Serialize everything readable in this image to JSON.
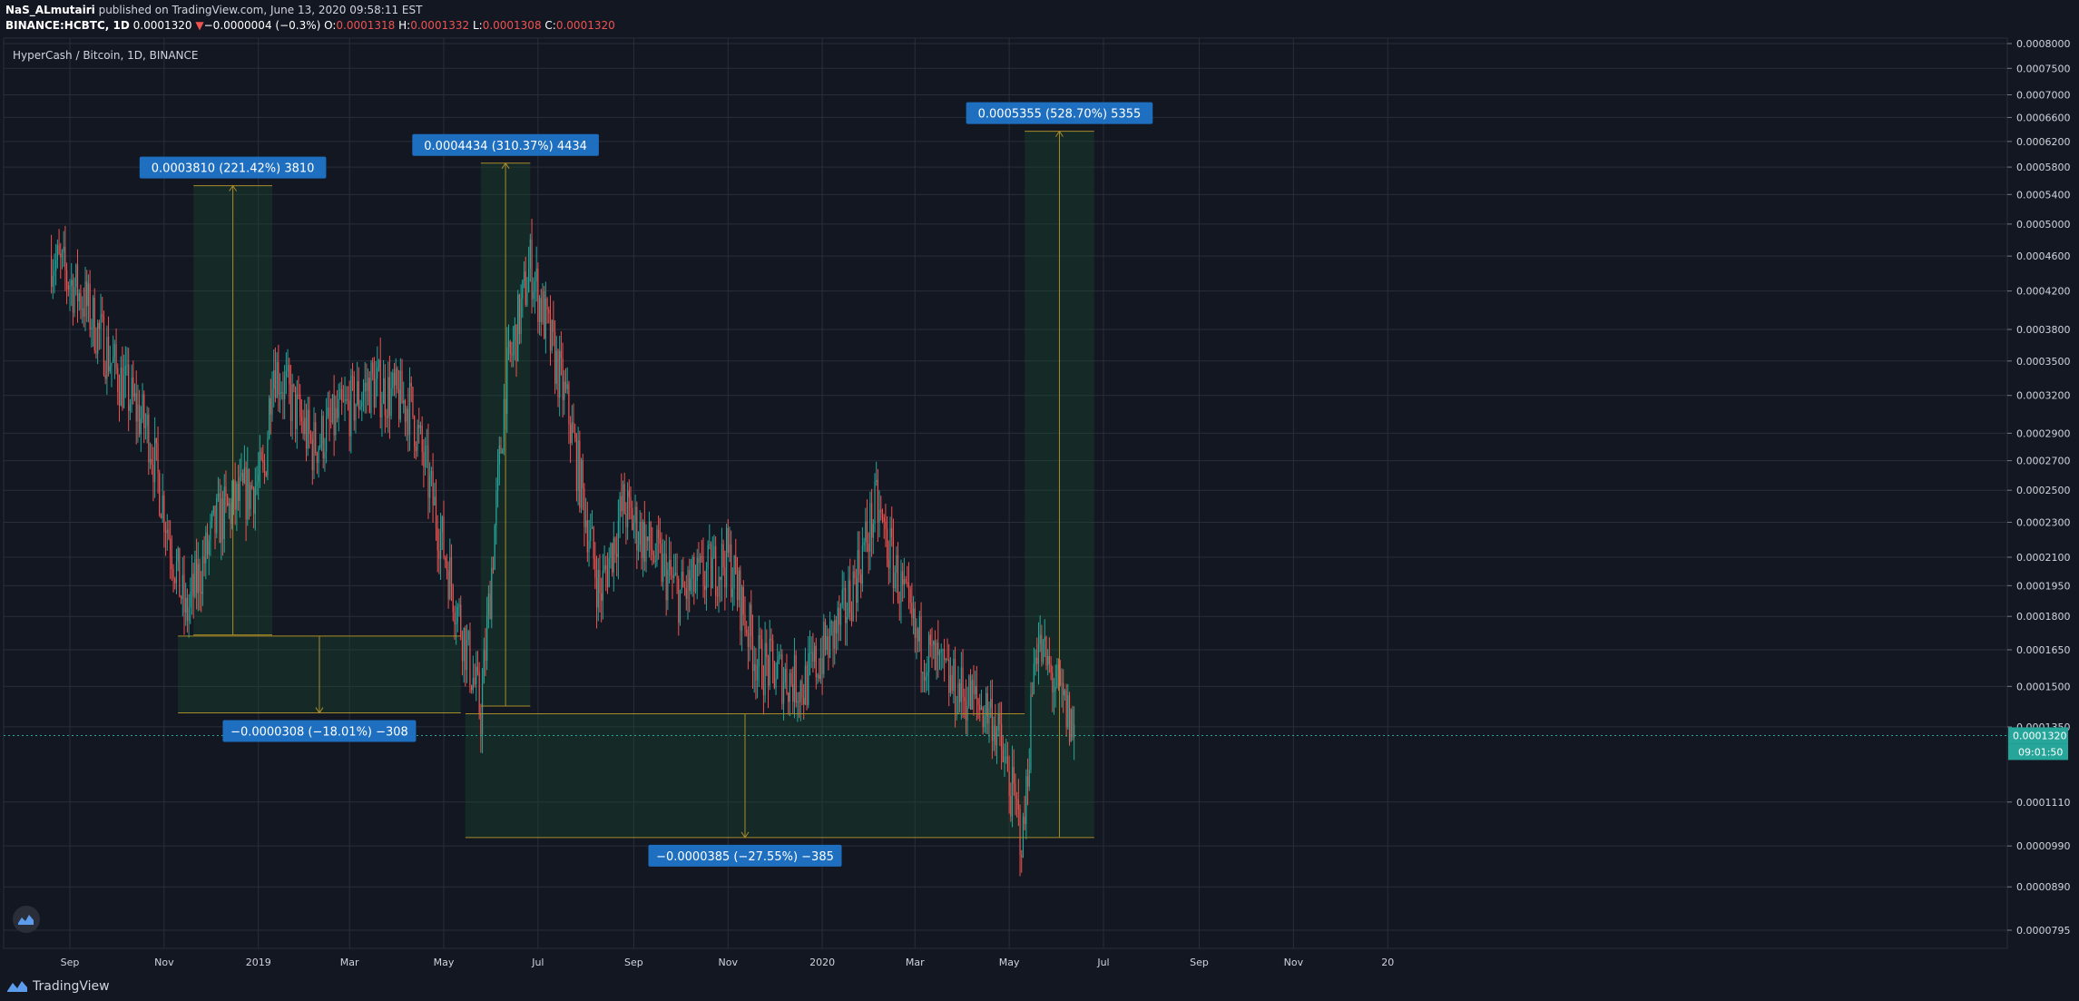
{
  "header": {
    "author": "NaS_ALmutairi",
    "published_text": "published on TradingView.com, June 13, 2020 09:58:11 EST",
    "symbol": "BINANCE:HCBTC, 1D",
    "last": "0.0001320",
    "change_arrow": "▼",
    "change": "−0.0000004 (−0.3%)",
    "o_label": "O:",
    "o_value": "0.0001318",
    "h_label": "H:",
    "h_value": "0.0001332",
    "l_label": "L:",
    "l_value": "0.0001308",
    "c_label": "C:",
    "c_value": "0.0001320"
  },
  "legend_title": "HyperCash / Bitcoin, 1D, BINANCE",
  "footer": {
    "brand": "TradingView"
  },
  "colors": {
    "background": "#131722",
    "grid": "#2a2e39",
    "up": "#26a69a",
    "down": "#ef5350",
    "measure_box": "#1b4d2e",
    "label_blue": "#1e6fc0",
    "measure_line": "#a88b2a",
    "price_line": "#26a69a"
  },
  "chart_data": {
    "type": "candlestick",
    "scale": "log",
    "title": "HyperCash / Bitcoin, 1D, BINANCE",
    "x_tick_labels": [
      "Sep",
      "Nov",
      "2019",
      "Mar",
      "May",
      "Jul",
      "Sep",
      "Nov",
      "2020",
      "Mar",
      "May",
      "Jul",
      "Sep",
      "Nov",
      "20"
    ],
    "y_tick_labels": [
      "0.0008000",
      "0.0007500",
      "0.0007000",
      "0.0006600",
      "0.0006200",
      "0.0005800",
      "0.0005400",
      "0.0005000",
      "0.0004600",
      "0.0004200",
      "0.0003800",
      "0.0003500",
      "0.0003200",
      "0.0002900",
      "0.0002700",
      "0.0002500",
      "0.0002300",
      "0.0002100",
      "0.0001950",
      "0.0001800",
      "0.0001650",
      "0.0001500",
      "0.0001350",
      "0.0001110",
      "0.0000990",
      "0.0000890",
      "0.0000795"
    ],
    "ylim": [
      7.95e-05,
      0.0008
    ],
    "last_price": "0.0001320",
    "countdown": "09:01:50",
    "approx_close_path": [
      [
        "2018-08-20",
        0.00046
      ],
      [
        "2018-09-10",
        0.00041
      ],
      [
        "2018-10-01",
        0.00034
      ],
      [
        "2018-10-22",
        0.00029
      ],
      [
        "2018-11-15",
        0.00018
      ],
      [
        "2018-12-05",
        0.00023
      ],
      [
        "2019-01-05",
        0.00026
      ],
      [
        "2019-01-10",
        0.00035
      ],
      [
        "2019-02-05",
        0.00028
      ],
      [
        "2019-03-15",
        0.00033
      ],
      [
        "2019-04-10",
        0.00031
      ],
      [
        "2019-05-05",
        0.0002
      ],
      [
        "2019-05-25",
        0.00014
      ],
      [
        "2019-06-10",
        0.00033
      ],
      [
        "2019-06-26",
        0.00045
      ],
      [
        "2019-07-20",
        0.00031
      ],
      [
        "2019-08-10",
        0.00019
      ],
      [
        "2019-08-25",
        0.00024
      ],
      [
        "2019-10-01",
        0.00019
      ],
      [
        "2019-11-01",
        0.00021
      ],
      [
        "2019-11-20",
        0.00016
      ],
      [
        "2019-12-20",
        0.00015
      ],
      [
        "2020-01-15",
        0.00018
      ],
      [
        "2020-02-05",
        0.00024
      ],
      [
        "2020-03-01",
        0.00017
      ],
      [
        "2020-03-25",
        0.00015
      ],
      [
        "2020-04-20",
        0.00014
      ],
      [
        "2020-05-10",
        0.0001
      ],
      [
        "2020-05-18",
        0.00017
      ],
      [
        "2020-06-13",
        0.000132
      ]
    ],
    "measurements": [
      {
        "label": "0.0003810 (221.42%) 3810",
        "type": "up",
        "from": [
          "2018-11-20",
          0.0001715
        ],
        "to": [
          "2019-01-10",
          0.0005525
        ]
      },
      {
        "label": "−0.0000308 (−18.01%) −308",
        "type": "down",
        "from": [
          "2018-11-10",
          0.000171
        ],
        "to": [
          "2019-05-12",
          0.00014
        ]
      },
      {
        "label": "0.0004434 (310.37%) 4434",
        "type": "up",
        "from": [
          "2019-05-25",
          0.0001425
        ],
        "to": [
          "2019-06-26",
          0.0005859
        ]
      },
      {
        "label": "−0.0000385 (−27.55%) −385",
        "type": "down",
        "from": [
          "2019-05-15",
          0.0001397
        ],
        "to": [
          "2020-05-11",
          0.0001012
        ]
      },
      {
        "label": "0.0005355 (528.70%) 5355",
        "type": "up",
        "from": [
          "2020-05-11",
          0.0001012
        ],
        "to": [
          "2020-06-25",
          0.0006367
        ]
      }
    ]
  }
}
